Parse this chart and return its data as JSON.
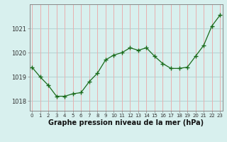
{
  "x": [
    0,
    1,
    2,
    3,
    4,
    5,
    6,
    7,
    8,
    9,
    10,
    11,
    12,
    13,
    14,
    15,
    16,
    17,
    18,
    19,
    20,
    21,
    22,
    23
  ],
  "y": [
    1019.4,
    1019.0,
    1018.65,
    1018.2,
    1018.2,
    1018.3,
    1018.35,
    1018.8,
    1019.15,
    1019.7,
    1019.9,
    1020.0,
    1020.2,
    1020.1,
    1020.2,
    1019.85,
    1019.55,
    1019.35,
    1019.35,
    1019.4,
    1019.85,
    1020.3,
    1021.1,
    1021.55
  ],
  "line_color": "#1a6b1a",
  "marker": "+",
  "marker_size": 4,
  "bg_color": "#d8f0ee",
  "hgrid_color": "#b8d4d4",
  "vgrid_color": "#e8b0b0",
  "xlabel": "Graphe pression niveau de la mer (hPa)",
  "xlabel_fontsize": 7,
  "ylabel_ticks": [
    1018,
    1019,
    1020,
    1021
  ],
  "xticks": [
    0,
    1,
    2,
    3,
    4,
    5,
    6,
    7,
    8,
    9,
    10,
    11,
    12,
    13,
    14,
    15,
    16,
    17,
    18,
    19,
    20,
    21,
    22,
    23
  ],
  "ylim": [
    1017.6,
    1022.0
  ],
  "xlim": [
    -0.3,
    23.3
  ],
  "spine_color": "#888888",
  "tick_color": "#333333",
  "tick_fontsize": 5,
  "ytick_fontsize": 6
}
